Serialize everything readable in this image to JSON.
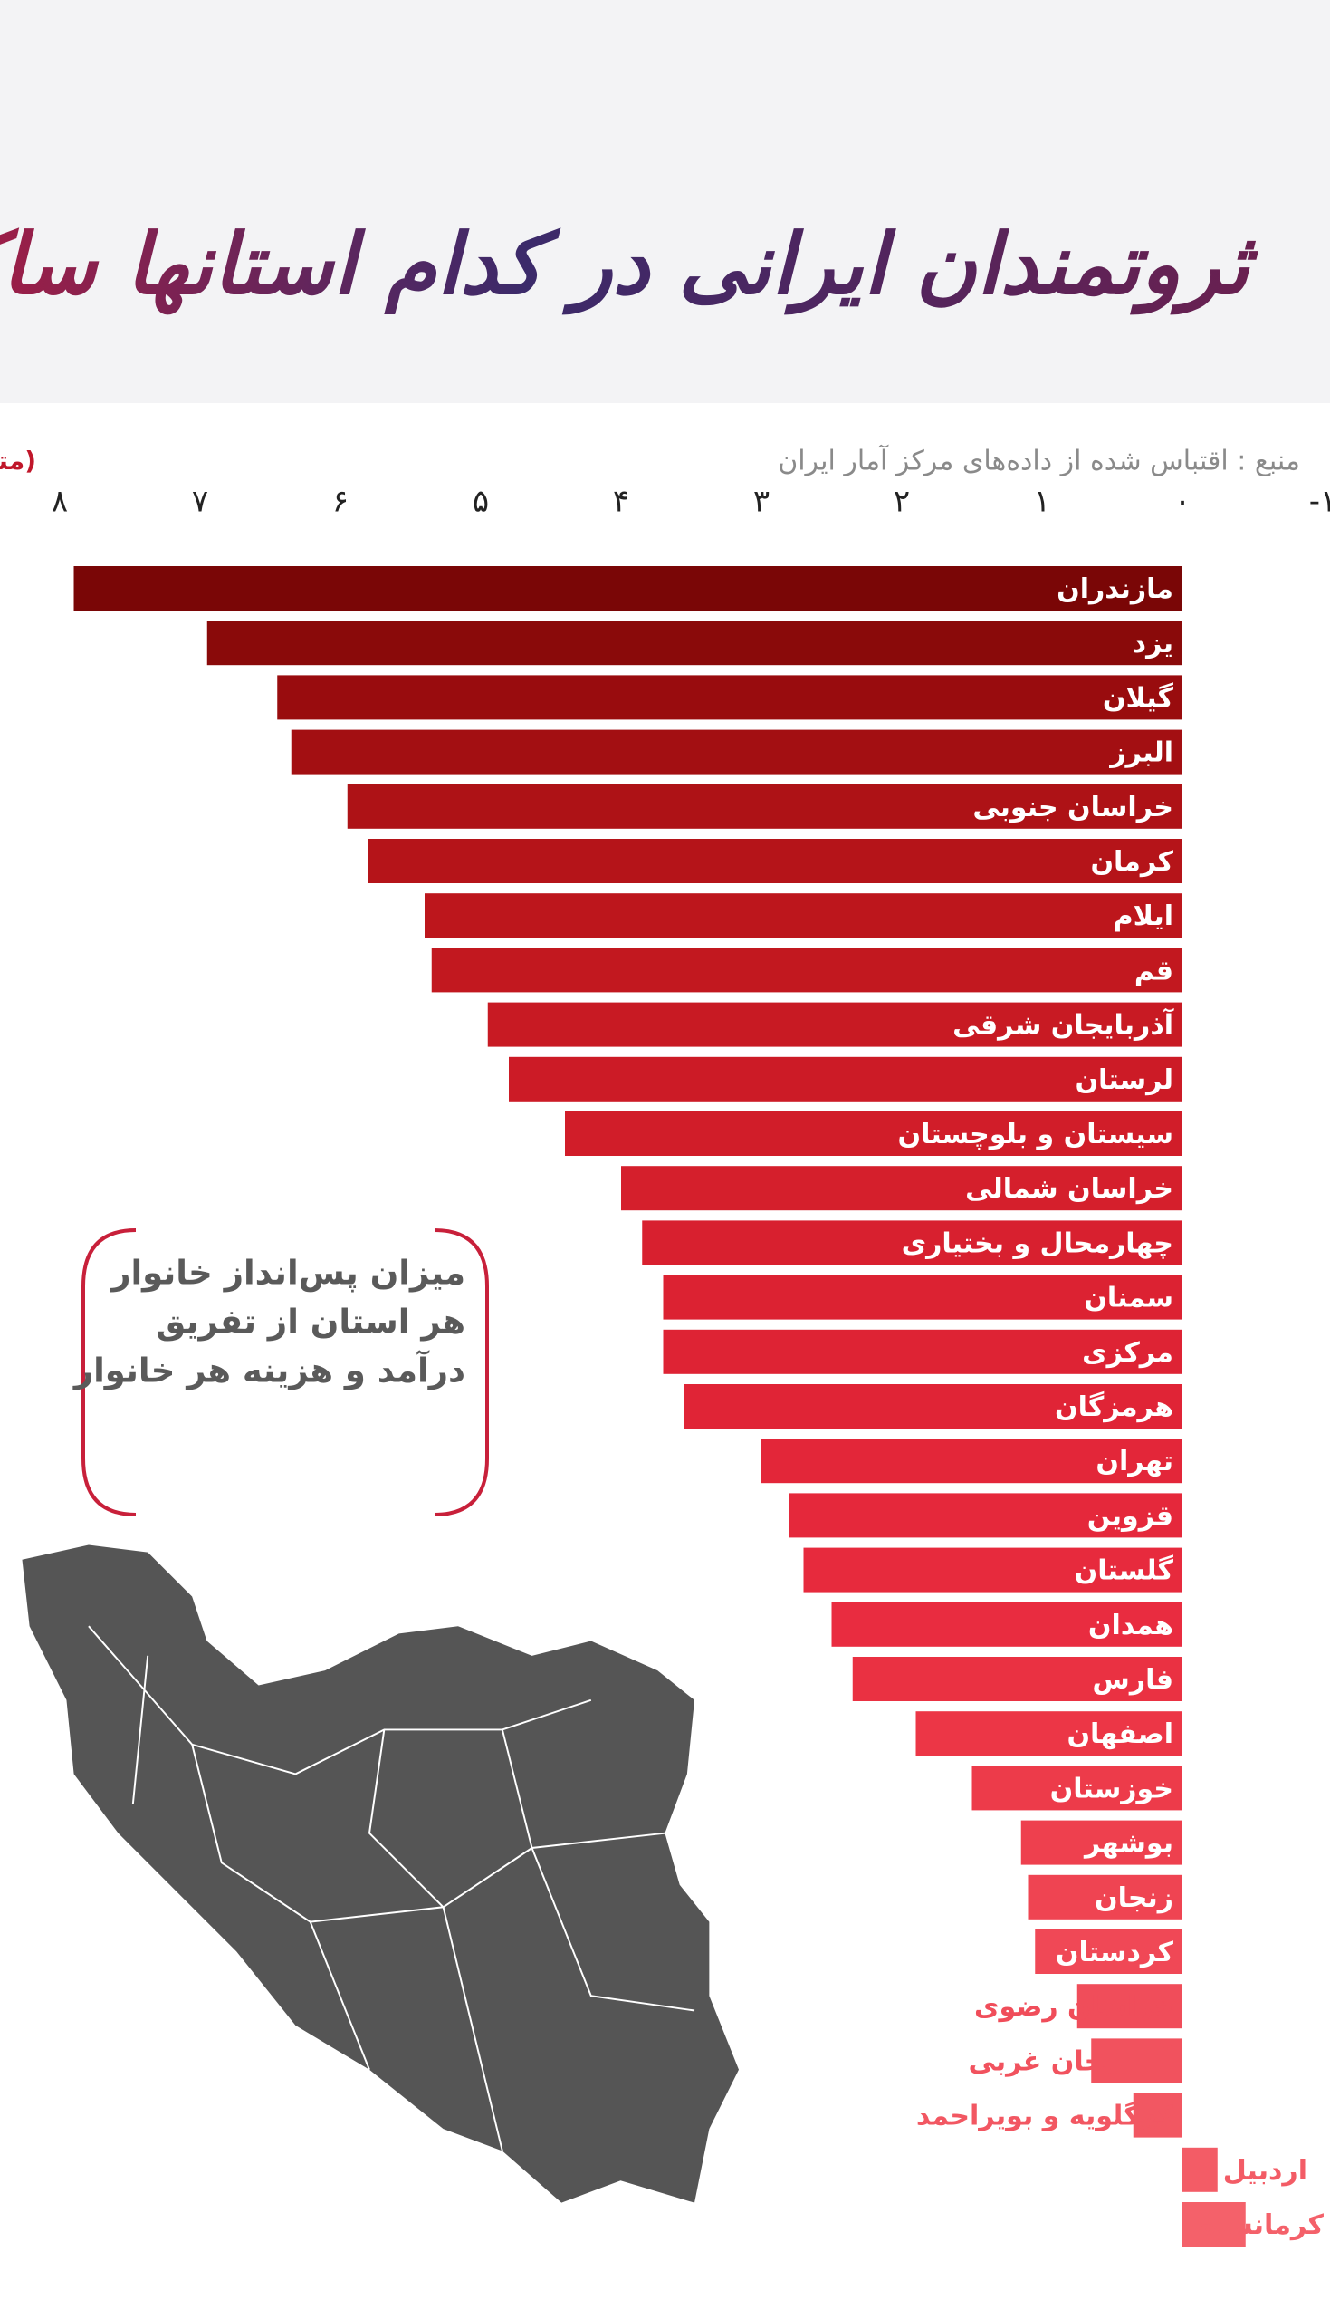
{
  "header": {
    "title": "ثروتمندان ایرانی در کدام استانها ساکنند ؟",
    "source": "منبع : اقتباس شده از داده‌های مرکز آمار ایران"
  },
  "note": [
    "میزان پس‌انداز خانوار",
    "هر استان از تفریق",
    "درآمد و هزینه هر خانوار"
  ],
  "chart_data": {
    "type": "bar",
    "orientation": "horizontal",
    "axis_title": "(متوسط پس‌انداز هر خانوار/ میلیون تومان)",
    "categories": [
      "مازندران",
      "یزد",
      "گیلان",
      "البرز",
      "خراسان جنوبی",
      "کرمان",
      "ایلام",
      "قم",
      "آذربایجان شرقی",
      "لرستان",
      "سیستان و بلوچستان",
      "خراسان شمالی",
      "چهارمحال و بختیاری",
      "سمنان",
      "مرکزی",
      "هرمزگان",
      "تهران",
      "قزوین",
      "گلستان",
      "همدان",
      "فارس",
      "اصفهان",
      "خوزستان",
      "بوشهر",
      "زنجان",
      "کردستان",
      "خراسان رضوی",
      "آذربایجان غربی",
      "کهگلویه و بویراحمد",
      "اردبیل",
      "کرمانشاه"
    ],
    "values": [
      7.9,
      6.95,
      6.45,
      6.35,
      5.95,
      5.8,
      5.4,
      5.35,
      4.95,
      4.8,
      4.4,
      4.0,
      3.85,
      3.7,
      3.7,
      3.55,
      3.0,
      2.8,
      2.7,
      2.5,
      2.35,
      1.9,
      1.5,
      1.15,
      1.1,
      1.05,
      0.75,
      0.65,
      0.35,
      -0.25,
      -0.45
    ],
    "colors": [
      "#7a0606",
      "#8a0a0a",
      "#990c0e",
      "#a30f12",
      "#ae1216",
      "#b51419",
      "#bd161c",
      "#c2181f",
      "#c81a23",
      "#cc1b26",
      "#d11d29",
      "#d51f2c",
      "#d8202f",
      "#dc2232",
      "#de2334",
      "#e02436",
      "#e32639",
      "#e5283b",
      "#e72a3d",
      "#e92c40",
      "#ea3142",
      "#ec3646",
      "#ed3b4a",
      "#ee404e",
      "#ef4452",
      "#f04856",
      "#f04d5a",
      "#f1525e",
      "#f25762",
      "#f35c66",
      "#f4616a"
    ],
    "xlim": [
      -1,
      8.2
    ],
    "reverse_x": true,
    "xticks": [
      {
        "value": 8,
        "label": "۸"
      },
      {
        "value": 7,
        "label": "۷"
      },
      {
        "value": 6,
        "label": "۶"
      },
      {
        "value": 5,
        "label": "۵"
      },
      {
        "value": 4,
        "label": "۴"
      },
      {
        "value": 3,
        "label": "۳"
      },
      {
        "value": 2,
        "label": "۲"
      },
      {
        "value": 1,
        "label": "۱"
      },
      {
        "value": 0,
        "label": "۰"
      },
      {
        "value": -1,
        "label": "-۱"
      }
    ]
  }
}
